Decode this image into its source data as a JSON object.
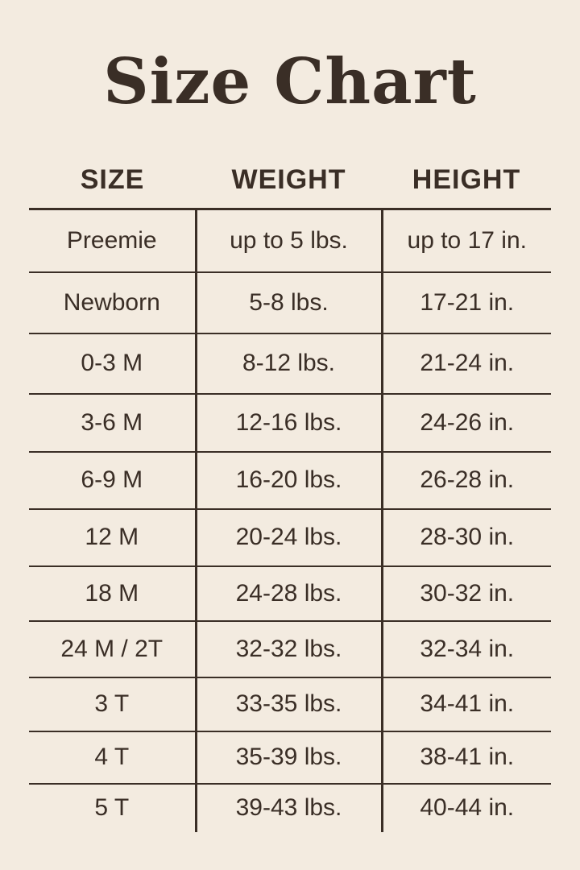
{
  "title": "Size Chart",
  "headers": [
    "SIZE",
    "WEIGHT",
    "HEIGHT"
  ],
  "rows": [
    [
      "Preemie",
      "up to 5 lbs.",
      "up to 17 in."
    ],
    [
      "Newborn",
      "5-8 lbs.",
      "17-21 in."
    ],
    [
      "0-3 M",
      "8-12 lbs.",
      "21-24 in."
    ],
    [
      "3-6 M",
      "12-16 lbs.",
      "24-26 in."
    ],
    [
      "6-9 M",
      "16-20 lbs.",
      "26-28 in."
    ],
    [
      "12 M",
      "20-24 lbs.",
      "28-30 in."
    ],
    [
      "18 M",
      "24-28 lbs.",
      "30-32 in."
    ],
    [
      "24 M / 2T",
      "32-32 lbs.",
      "32-34 in."
    ],
    [
      "3 T",
      "33-35 lbs.",
      "34-41 in."
    ],
    [
      "4 T",
      "35-39 lbs.",
      "38-41 in."
    ],
    [
      "5 T",
      "39-43 lbs.",
      "40-44 in."
    ]
  ],
  "colors": {
    "background": "#f3ebe0",
    "text": "#3a2e26"
  }
}
